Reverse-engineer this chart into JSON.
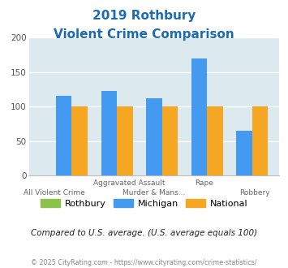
{
  "title_line1": "2019 Rothbury",
  "title_line2": "Violent Crime Comparison",
  "series": {
    "Rothbury": [
      0,
      0,
      0,
      0,
      0
    ],
    "Michigan": [
      115,
      122,
      112,
      170,
      65
    ],
    "National": [
      100,
      100,
      100,
      100,
      100
    ]
  },
  "colors": {
    "Rothbury": "#8bc34a",
    "Michigan": "#4499f0",
    "National": "#f5a623"
  },
  "ylim": [
    0,
    200
  ],
  "yticks": [
    0,
    50,
    100,
    150,
    200
  ],
  "plot_bg": "#dce9ee",
  "title_color": "#1a6ab5",
  "subtitle_color": "#333333",
  "footer_color": "#888888",
  "subtitle_text": "Compared to U.S. average. (U.S. average equals 100)",
  "footer_text": "© 2025 CityRating.com - https://www.cityrating.com/crime-statistics/",
  "bar_width": 0.35,
  "group_positions": [
    0,
    1,
    2,
    3,
    4
  ],
  "top_row_labels": [
    "",
    "Aggravated Assault",
    "",
    "Rape",
    ""
  ],
  "bottom_row_labels": [
    "All Violent Crime",
    "",
    "Murder & Mans...",
    "",
    "Robbery"
  ],
  "legend_labels": [
    "Rothbury",
    "Michigan",
    "National"
  ]
}
